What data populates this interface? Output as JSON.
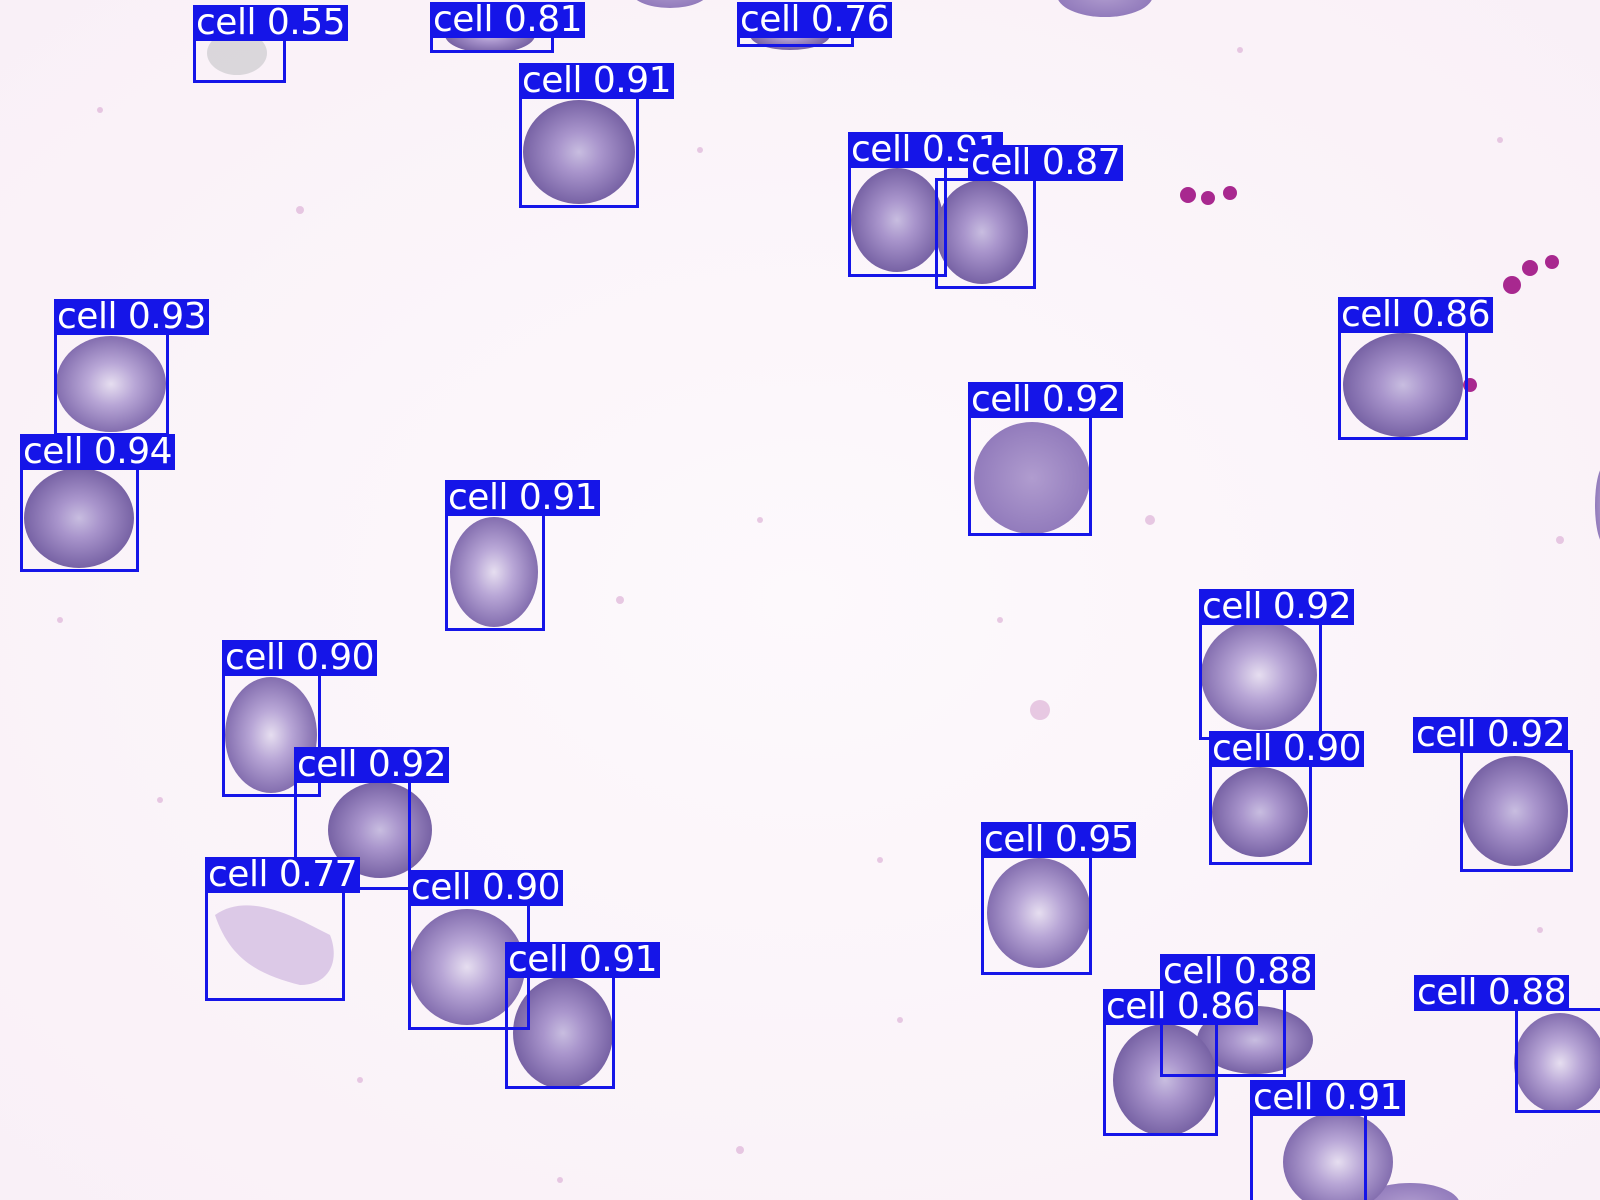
{
  "label_color": "#1515e8",
  "label_text_color": "#ffffff",
  "cell_color": "#8a74b8",
  "background_color": "#fbf4fa",
  "detections": [
    {
      "class": "cell",
      "score": "0.55"
    },
    {
      "class": "cell",
      "score": "0.81"
    },
    {
      "class": "cell",
      "score": "0.76"
    },
    {
      "class": "cell",
      "score": "0.91"
    },
    {
      "class": "cell",
      "score": "0.91"
    },
    {
      "class": "cell",
      "score": "0.87"
    },
    {
      "class": "cell",
      "score": "0.93"
    },
    {
      "class": "cell",
      "score": "0.86"
    },
    {
      "class": "cell",
      "score": "0.92"
    },
    {
      "class": "cell",
      "score": "0.94"
    },
    {
      "class": "cell",
      "score": "0.91"
    },
    {
      "class": "cell",
      "score": "0.92"
    },
    {
      "class": "cell",
      "score": "0.90"
    },
    {
      "class": "cell",
      "score": "0.90"
    },
    {
      "class": "cell",
      "score": "0.92"
    },
    {
      "class": "cell",
      "score": "0.92"
    },
    {
      "class": "cell",
      "score": "0.95"
    },
    {
      "class": "cell",
      "score": "0.77"
    },
    {
      "class": "cell",
      "score": "0.90"
    },
    {
      "class": "cell",
      "score": "0.91"
    },
    {
      "class": "cell",
      "score": "0.88"
    },
    {
      "class": "cell",
      "score": "0.86"
    },
    {
      "class": "cell",
      "score": "0.88"
    },
    {
      "class": "cell",
      "score": "0.91"
    }
  ]
}
